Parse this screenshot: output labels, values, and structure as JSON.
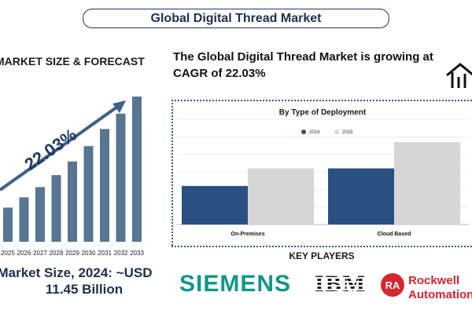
{
  "title": "Global Digital Thread Market",
  "market_section": {
    "heading": "MARKET SIZE & FORECAST",
    "cagr_label": "22.03%",
    "market_size_line1": "Market Size, 2024: ~USD",
    "market_size_line2": "11.45 Billion"
  },
  "headline": "The Global Digital Thread Market is growing at CAGR of 22.03%",
  "deployment_chart_title": "By Type of Deployment",
  "key_players": {
    "heading": "KEY PLAYERS",
    "logo_siemens": "SIEMENS",
    "logo_ibm": "IBM",
    "logo_rockwell_line1": "Rockwell",
    "logo_rockwell_line2": "Automation",
    "logo_rockwell_mark": "RA"
  },
  "colors": {
    "navy": "#1f3864",
    "bar_steel": "#5a7592",
    "bar_2024": "#2a5082",
    "bar_2033": "#d6d6d6",
    "siemens_teal": "#11968a",
    "rockwell_red": "#d6262e"
  },
  "chart_data": [
    {
      "type": "bar",
      "title": "",
      "categories": [
        "2025",
        "2026",
        "2027",
        "2028",
        "2029",
        "2030",
        "2031",
        "2032",
        "2033"
      ],
      "values": [
        1.0,
        1.3,
        1.6,
        1.95,
        2.35,
        2.8,
        3.3,
        3.75,
        4.25
      ],
      "annotation": "22.03%",
      "xlabel": "",
      "ylabel": "",
      "grid": false
    },
    {
      "type": "bar",
      "title": "By Type of Deployment",
      "categories": [
        "On-Premises",
        "Cloud Based"
      ],
      "series": [
        {
          "name": "2024",
          "values": [
            2.2,
            3.2
          ]
        },
        {
          "name": "2033",
          "values": [
            3.2,
            4.7
          ]
        }
      ],
      "ylim": [
        0,
        6
      ],
      "legend": "top-center",
      "grid": true
    }
  ]
}
